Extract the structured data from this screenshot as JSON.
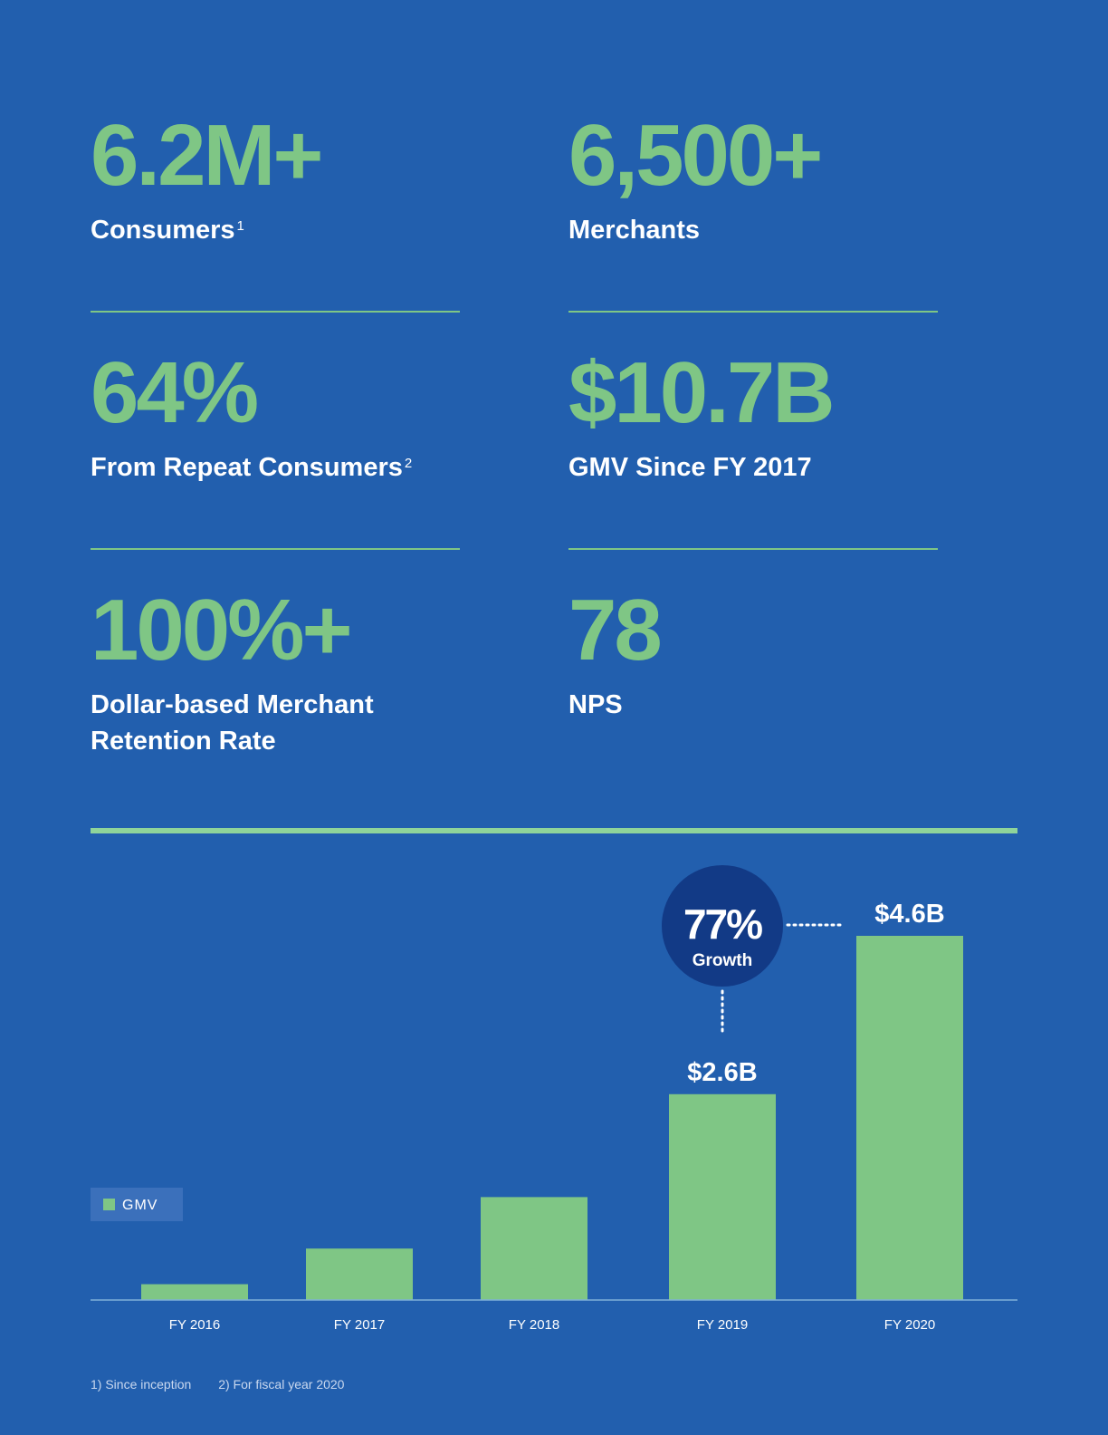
{
  "stats": {
    "consumers": {
      "value": "6.2M+",
      "label": "Consumers",
      "note": "1"
    },
    "merchants": {
      "value": "6,500+",
      "label": "Merchants"
    },
    "repeat": {
      "value": "64%",
      "label": "From Repeat Consumers",
      "note": "2"
    },
    "gmv_total": {
      "value": "$10.7B",
      "label": "GMV Since FY 2017"
    },
    "retention": {
      "value": "100%+",
      "label_line1": "Dollar-based Merchant",
      "label_line2": "Retention Rate"
    },
    "nps": {
      "value": "78",
      "label": "NPS"
    }
  },
  "colors": {
    "background": "#225fae",
    "accent_green": "#7fc685",
    "growth_circle": "#123a86",
    "legend_box": "#3b70bb"
  },
  "chart_data": {
    "type": "bar",
    "categories": [
      "FY 2016",
      "FY 2017",
      "FY 2018",
      "FY 2019",
      "FY 2020"
    ],
    "series": [
      {
        "name": "GMV",
        "values": [
          0.2,
          0.65,
          1.3,
          2.6,
          4.6
        ]
      }
    ],
    "unit": "$B",
    "data_labels": [
      "",
      "",
      "",
      "$2.6B",
      "$4.6B"
    ],
    "ylim": [
      0,
      4.6
    ],
    "legend": {
      "label": "GMV",
      "placement": "left"
    },
    "annotation": {
      "value": "77%",
      "text": "Growth"
    },
    "grid": false
  },
  "footnotes": [
    "1) Since inception",
    "2) For fiscal year 2020"
  ]
}
